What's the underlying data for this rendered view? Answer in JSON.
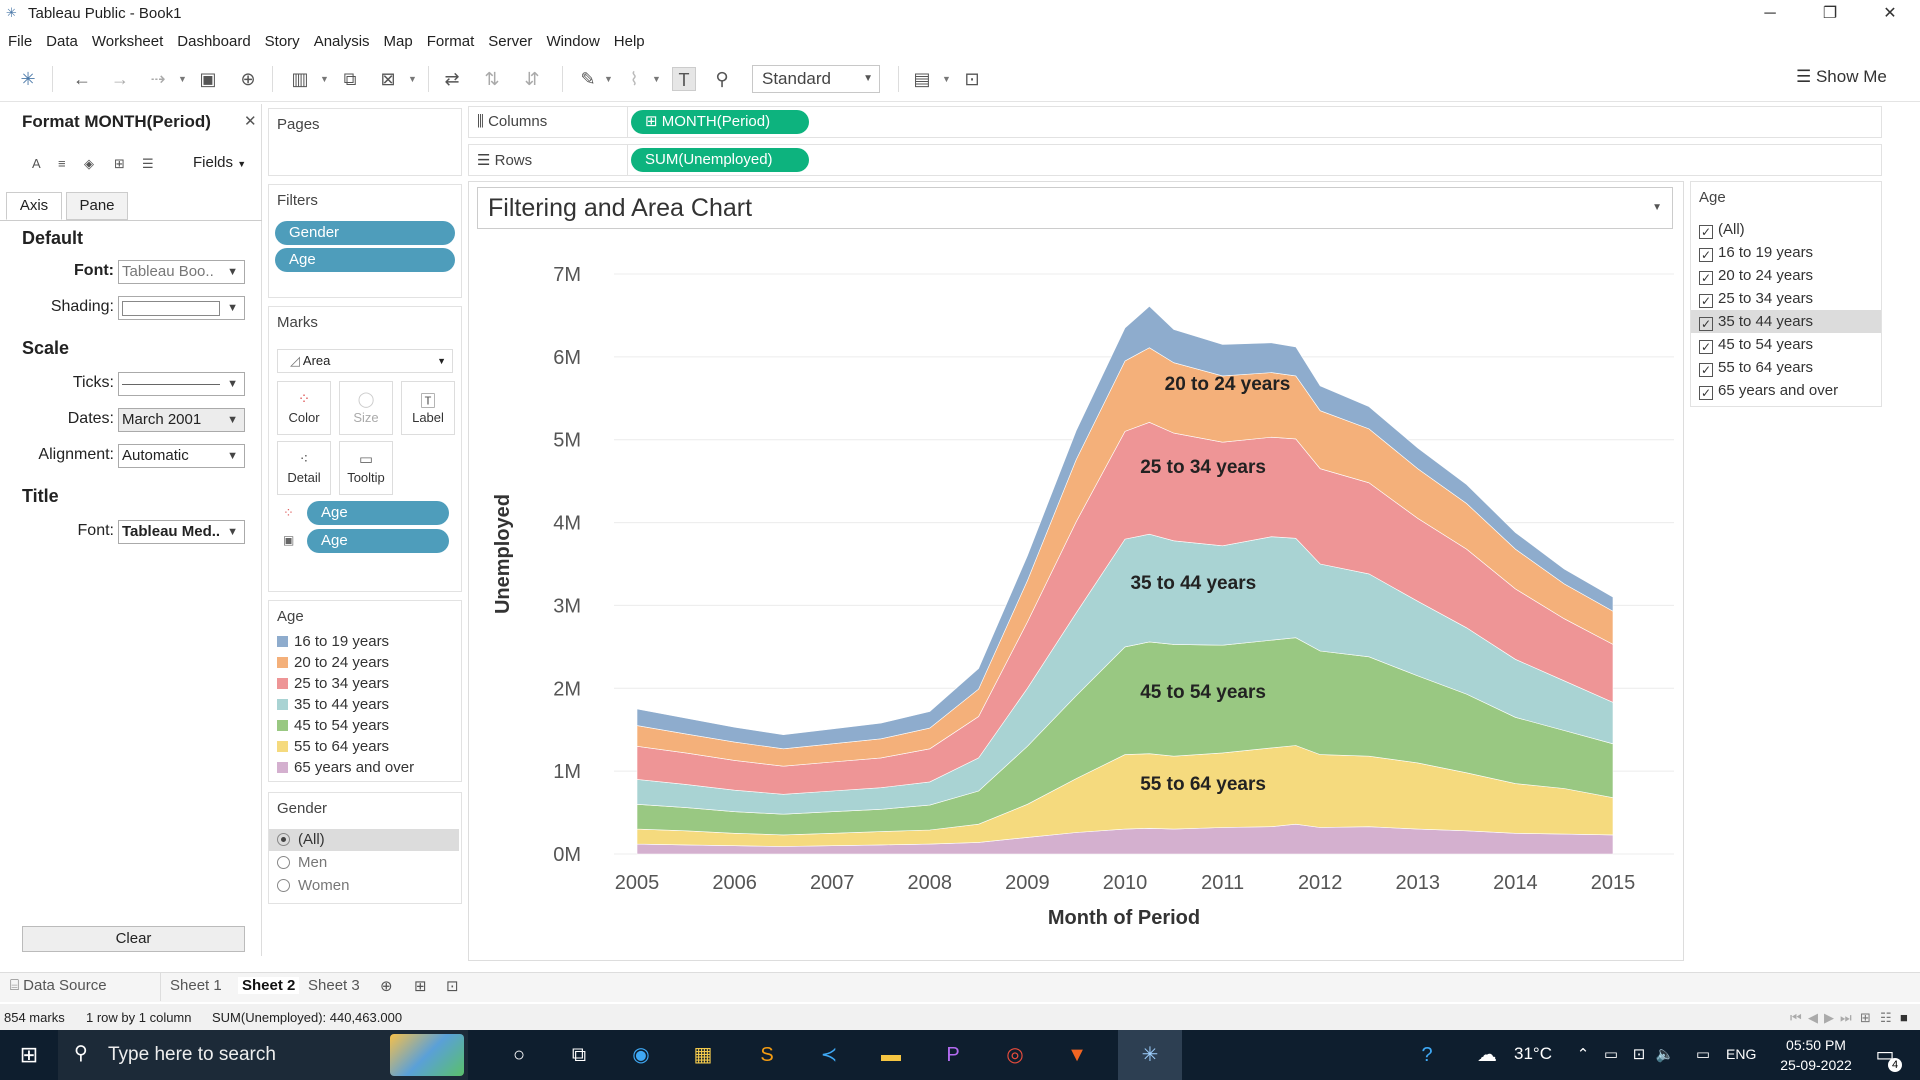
{
  "window": {
    "title": "Tableau Public - Book1"
  },
  "menu": [
    "File",
    "Data",
    "Worksheet",
    "Dashboard",
    "Story",
    "Analysis",
    "Map",
    "Format",
    "Server",
    "Window",
    "Help"
  ],
  "toolbar": {
    "fit_mode": "Standard",
    "show_me": "Show Me"
  },
  "format_pane": {
    "title": "Format MONTH(Period)",
    "fields": "Fields",
    "tabs": [
      "Axis",
      "Pane"
    ],
    "default_head": "Default",
    "font_label": "Font:",
    "font_value": "Tableau Boo..",
    "shading_label": "Shading:",
    "scale_head": "Scale",
    "ticks_label": "Ticks:",
    "dates_label": "Dates:",
    "dates_value": "March 2001",
    "alignment_label": "Alignment:",
    "alignment_value": "Automatic",
    "title_head": "Title",
    "title_font_label": "Font:",
    "title_font_value": "Tableau Med..",
    "clear": "Clear"
  },
  "shelves": {
    "pages": "Pages",
    "filters": "Filters",
    "filter_pills": [
      "Gender",
      "Age"
    ],
    "marks": "Marks",
    "mark_type": "Area",
    "mark_buttons": [
      "Color",
      "Size",
      "Label",
      "Detail",
      "Tooltip"
    ],
    "mark_pills": [
      "Age",
      "Age"
    ],
    "columns_label": "Columns",
    "columns_pill": "MONTH(Period)",
    "rows_label": "Rows",
    "rows_pill": "SUM(Unemployed)"
  },
  "age_legend": {
    "title": "Age",
    "items": [
      {
        "label": "16 to 19 years",
        "color": "#8eaccd"
      },
      {
        "label": "20 to 24 years",
        "color": "#f4b07a"
      },
      {
        "label": "25 to 34 years",
        "color": "#ee9596"
      },
      {
        "label": "35 to 44 years",
        "color": "#a9d3d3"
      },
      {
        "label": "45 to 54 years",
        "color": "#99c882"
      },
      {
        "label": "55 to 64 years",
        "color": "#f5da7e"
      },
      {
        "label": "65 years and over",
        "color": "#d4b0cf"
      }
    ]
  },
  "gender_filter": {
    "title": "Gender",
    "options": [
      "(All)",
      "Men",
      "Women"
    ],
    "selected": "(All)"
  },
  "age_filter": {
    "title": "Age",
    "options": [
      "(All)",
      "16 to 19 years",
      "20 to 24 years",
      "25 to 34 years",
      "35 to 44 years",
      "45 to 54 years",
      "55 to 64 years",
      "65 years and over"
    ],
    "highlighted": "35 to 44 years"
  },
  "viz": {
    "title": "Filtering and Area Chart"
  },
  "chart_data": {
    "type": "area",
    "stacked": true,
    "xlabel": "Month of Period",
    "ylabel": "Unemployed",
    "ylim": [
      0,
      7000000
    ],
    "yticks": [
      "0M",
      "1M",
      "2M",
      "3M",
      "4M",
      "5M",
      "6M",
      "7M"
    ],
    "xticks": [
      "2005",
      "2006",
      "2007",
      "2008",
      "2009",
      "2010",
      "2011",
      "2012",
      "2013",
      "2014",
      "2015"
    ],
    "x": [
      2005.0,
      2005.5,
      2006.0,
      2006.5,
      2007.0,
      2007.5,
      2008.0,
      2008.5,
      2009.0,
      2009.5,
      2010.0,
      2010.25,
      2010.5,
      2011.0,
      2011.5,
      2011.75,
      2012.0,
      2012.5,
      2013.0,
      2013.5,
      2014.0,
      2014.5,
      2015.0
    ],
    "series": [
      {
        "name": "65 years and over",
        "color": "#d4b0cf",
        "values": [
          120000,
          110000,
          100000,
          90000,
          100000,
          110000,
          120000,
          140000,
          200000,
          260000,
          300000,
          310000,
          300000,
          320000,
          330000,
          360000,
          320000,
          330000,
          300000,
          280000,
          250000,
          240000,
          230000
        ]
      },
      {
        "name": "55 to 64 years",
        "color": "#f5da7e",
        "values": [
          180000,
          170000,
          150000,
          140000,
          150000,
          160000,
          170000,
          220000,
          400000,
          650000,
          900000,
          900000,
          880000,
          900000,
          950000,
          950000,
          880000,
          850000,
          800000,
          700000,
          600000,
          550000,
          450000
        ]
      },
      {
        "name": "45 to 54 years",
        "color": "#99c882",
        "values": [
          300000,
          280000,
          260000,
          250000,
          260000,
          270000,
          300000,
          400000,
          700000,
          1000000,
          1300000,
          1350000,
          1350000,
          1300000,
          1300000,
          1300000,
          1250000,
          1200000,
          1050000,
          950000,
          800000,
          700000,
          650000
        ]
      },
      {
        "name": "35 to 44 years",
        "color": "#a9d3d3",
        "values": [
          300000,
          280000,
          260000,
          240000,
          250000,
          260000,
          280000,
          400000,
          700000,
          1000000,
          1300000,
          1300000,
          1250000,
          1200000,
          1250000,
          1200000,
          1050000,
          1000000,
          900000,
          800000,
          700000,
          600000,
          500000
        ]
      },
      {
        "name": "25 to 34 years",
        "color": "#ee9596",
        "values": [
          400000,
          380000,
          360000,
          340000,
          350000,
          360000,
          400000,
          500000,
          800000,
          1100000,
          1300000,
          1350000,
          1300000,
          1250000,
          1200000,
          1200000,
          1150000,
          1100000,
          1000000,
          950000,
          850000,
          750000,
          700000
        ]
      },
      {
        "name": "20 to 24 years",
        "color": "#f4b07a",
        "values": [
          250000,
          230000,
          220000,
          210000,
          220000,
          230000,
          250000,
          330000,
          500000,
          750000,
          850000,
          900000,
          850000,
          800000,
          780000,
          760000,
          700000,
          650000,
          600000,
          550000,
          480000,
          420000,
          400000
        ]
      },
      {
        "name": "16 to 19 years",
        "color": "#8eaccd",
        "values": [
          200000,
          190000,
          180000,
          170000,
          180000,
          190000,
          200000,
          250000,
          300000,
          350000,
          400000,
          500000,
          400000,
          380000,
          360000,
          350000,
          300000,
          270000,
          250000,
          230000,
          200000,
          180000,
          170000
        ]
      }
    ],
    "annotations": [
      {
        "text": "20 to 24 years",
        "x": 2011.05,
        "y": 5600000
      },
      {
        "text": "25 to 34 years",
        "x": 2010.8,
        "y": 4600000
      },
      {
        "text": "35 to 44 years",
        "x": 2010.7,
        "y": 3200000
      },
      {
        "text": "45 to 54 years",
        "x": 2010.8,
        "y": 1880000
      },
      {
        "text": "55 to 64 years",
        "x": 2010.8,
        "y": 770000
      }
    ]
  },
  "sheet_tabs": {
    "data_source": "Data Source",
    "sheets": [
      "Sheet 1",
      "Sheet 2",
      "Sheet 3"
    ],
    "active": "Sheet 2"
  },
  "status": {
    "marks": "854 marks",
    "dims": "1 row by 1 column",
    "sum": "SUM(Unemployed): 440,463.000"
  },
  "taskbar": {
    "search_placeholder": "Type here to search",
    "temp": "31°C",
    "lang": "ENG",
    "time": "05:50 PM",
    "date": "25-09-2022",
    "notif_count": "4"
  }
}
